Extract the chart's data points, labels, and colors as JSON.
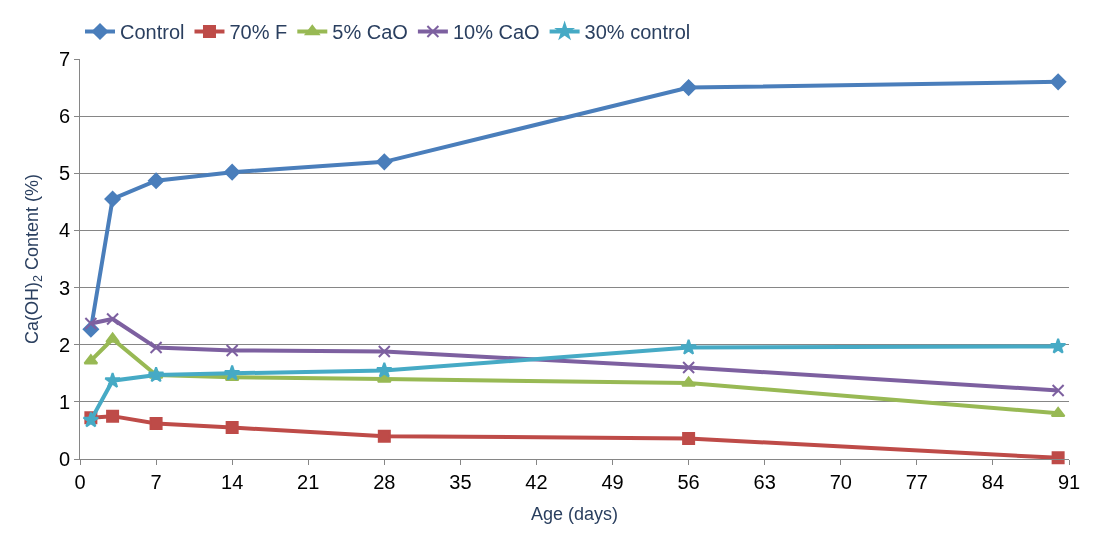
{
  "chart_data": {
    "type": "line",
    "xlabel": "Age (days)",
    "ylabel": "Ca(OH)$_{2}$ Content (%)",
    "x": [
      1,
      3,
      7,
      14,
      28,
      56,
      90
    ],
    "xlim": [
      0,
      91
    ],
    "xticks": [
      0,
      7,
      14,
      21,
      28,
      35,
      42,
      49,
      56,
      63,
      70,
      77,
      84,
      91
    ],
    "ylim": [
      0,
      7
    ],
    "yticks": [
      0,
      1,
      2,
      3,
      4,
      5,
      6,
      7
    ],
    "grid": "y",
    "legend": "top",
    "series": [
      {
        "name": "Control",
        "color": "#4a7ebb",
        "marker": "diamond",
        "values": [
          2.27,
          4.55,
          4.87,
          5.02,
          5.2,
          6.5,
          6.6
        ]
      },
      {
        "name": "70% F",
        "color": "#be4b48",
        "marker": "square",
        "values": [
          0.72,
          0.75,
          0.62,
          0.55,
          0.4,
          0.36,
          0.02
        ]
      },
      {
        "name": "5% CaO",
        "color": "#98b954",
        "marker": "triangle",
        "values": [
          1.72,
          2.1,
          1.47,
          1.43,
          1.4,
          1.33,
          0.8
        ]
      },
      {
        "name": "10% CaO",
        "color": "#7d60a0",
        "marker": "cross",
        "values": [
          2.37,
          2.45,
          1.95,
          1.9,
          1.88,
          1.6,
          1.2
        ]
      },
      {
        "name": "30% control",
        "color": "#46aac5",
        "marker": "star",
        "values": [
          0.68,
          1.37,
          1.47,
          1.5,
          1.55,
          1.95,
          1.97
        ]
      }
    ]
  }
}
